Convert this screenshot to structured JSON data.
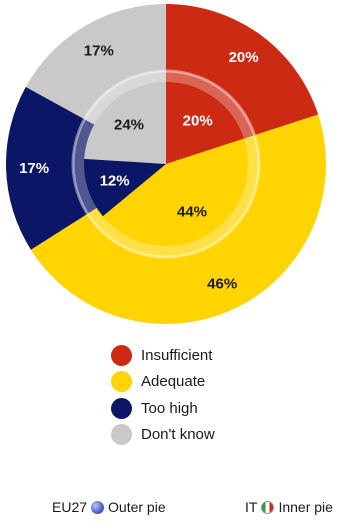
{
  "chart_data": {
    "type": "pie",
    "categories": [
      "Insufficient",
      "Adequate",
      "Too high",
      "Don't know"
    ],
    "colors": [
      "#cc2a12",
      "#ffd400",
      "#0c1666",
      "#c9c9c9"
    ],
    "series": [
      {
        "values": [
          20,
          46,
          17,
          17
        ],
        "labels": [
          "20%",
          "46%",
          "17%",
          "17%"
        ]
      },
      {
        "values": [
          20,
          44,
          12,
          24
        ],
        "labels": [
          "20%",
          "44%",
          "12%",
          "24%"
        ]
      }
    ]
  },
  "legend": {
    "items": [
      {
        "label": "Insufficient"
      },
      {
        "label": "Adequate"
      },
      {
        "label": "Too high"
      },
      {
        "label": "Don't know"
      }
    ]
  },
  "footer": {
    "eu_code": "EU27",
    "eu_text": "Outer pie",
    "it_code": "IT",
    "it_text": "Inner pie",
    "eu_icon": "eu-globe-icon",
    "it_icon": "italy-flag-icon"
  }
}
